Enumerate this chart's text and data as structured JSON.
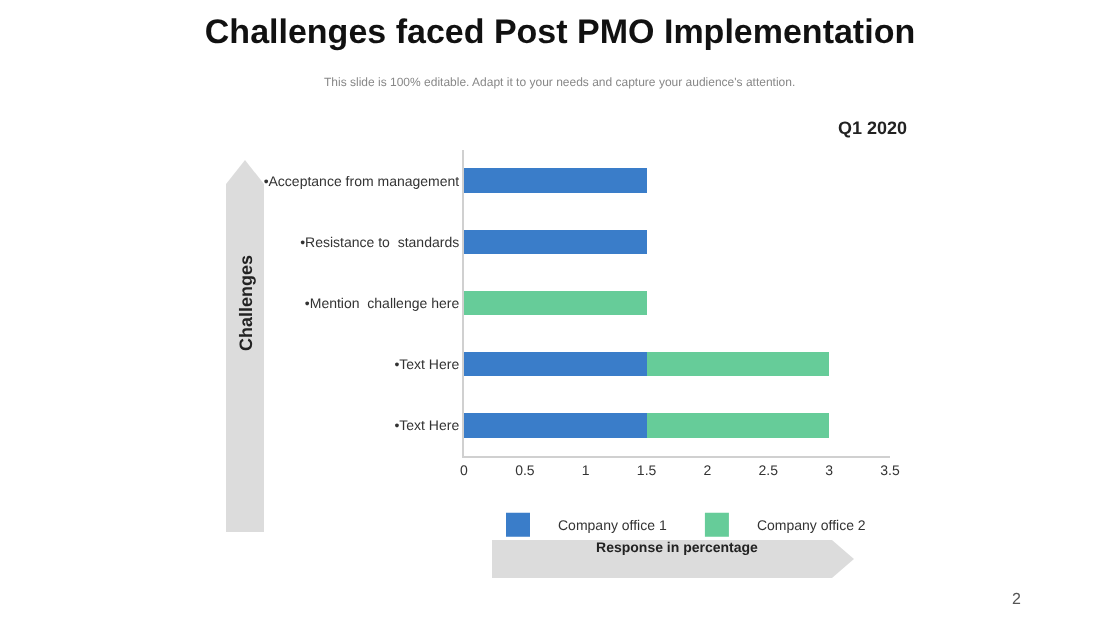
{
  "chart_data": {
    "type": "bar",
    "orientation": "horizontal",
    "stacked": true,
    "title": "Challenges faced Post PMO Implementation",
    "subtitle": "This slide is 100% editable. Adapt it to your needs and capture your audience's attention.",
    "xlabel": "Response in percentage",
    "ylabel": "Challenges",
    "categories": [
      "•Acceptance from management",
      "•Resistance to  standards",
      "•Mention  challenge here",
      "•Text Here",
      "•Text Here"
    ],
    "series": [
      {
        "name": "Company office 1",
        "color": "#3a7dc9",
        "values": [
          1.5,
          1.5,
          0,
          1.5,
          1.5
        ]
      },
      {
        "name": "Company office 2",
        "color": "#66cc99",
        "values": [
          0,
          0,
          1.5,
          1.5,
          1.5
        ]
      }
    ],
    "xlim": [
      0,
      3.5
    ],
    "xticks": [
      0,
      0.5,
      1,
      1.5,
      2,
      2.5,
      3,
      3.5
    ],
    "grid": false,
    "legend": "bottom",
    "annotations": [
      "Q1 2020",
      "2"
    ]
  }
}
